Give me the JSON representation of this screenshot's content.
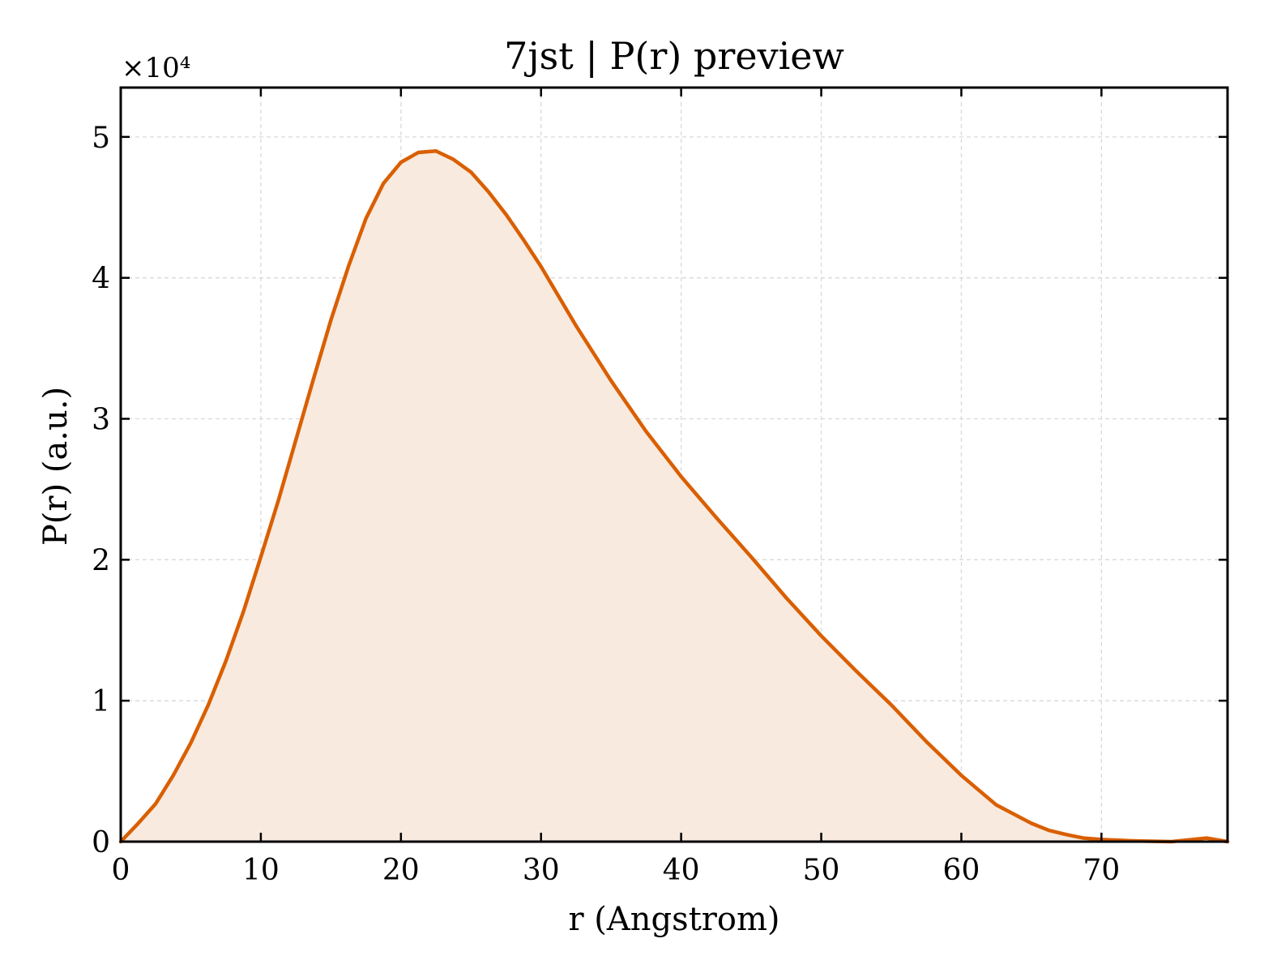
{
  "chart_data": {
    "type": "area",
    "title": "7jst | P(r) preview",
    "xlabel": "r (Angstrom)",
    "ylabel": "P(r) (a.u.)",
    "y_multiplier_label": "×10⁴",
    "y_scale": 10000,
    "xlim": [
      0,
      79
    ],
    "ylim": [
      0,
      53500
    ],
    "xticks": [
      0,
      10,
      20,
      30,
      40,
      50,
      60,
      70
    ],
    "xtick_labels": [
      "0",
      "10",
      "20",
      "30",
      "40",
      "50",
      "60",
      "70"
    ],
    "yticks": [
      0,
      10000,
      20000,
      30000,
      40000,
      50000
    ],
    "ytick_labels": [
      "0",
      "1",
      "2",
      "3",
      "4",
      "5"
    ],
    "grid": true,
    "line_color": "#d95f02",
    "fill_color": "#f9eadf",
    "series": [
      {
        "x": [
          0,
          1.25,
          2.5,
          3.75,
          5,
          6.25,
          7.5,
          8.75,
          10,
          11.25,
          12.5,
          13.75,
          15,
          16.25,
          17.5,
          18.75,
          20,
          21.25,
          22.5,
          23.75,
          25,
          26.25,
          27.5,
          28.75,
          30,
          32.5,
          35,
          37.5,
          40,
          42.5,
          45,
          47.5,
          50,
          52.5,
          55,
          57.5,
          60,
          62.5,
          65,
          66.25,
          67.5,
          68.75,
          70,
          72.5,
          75,
          77.5,
          79
        ],
        "y": [
          0,
          1300,
          2700,
          4700,
          7000,
          9700,
          12800,
          16300,
          20200,
          24200,
          28500,
          32800,
          37000,
          40800,
          44200,
          46700,
          48200,
          48900,
          49000,
          48400,
          47500,
          46100,
          44500,
          42700,
          40800,
          36600,
          32700,
          29100,
          25900,
          23000,
          20200,
          17300,
          14600,
          12100,
          9700,
          7100,
          4700,
          2600,
          1300,
          800,
          500,
          250,
          150,
          50,
          0,
          250,
          0
        ]
      }
    ]
  }
}
